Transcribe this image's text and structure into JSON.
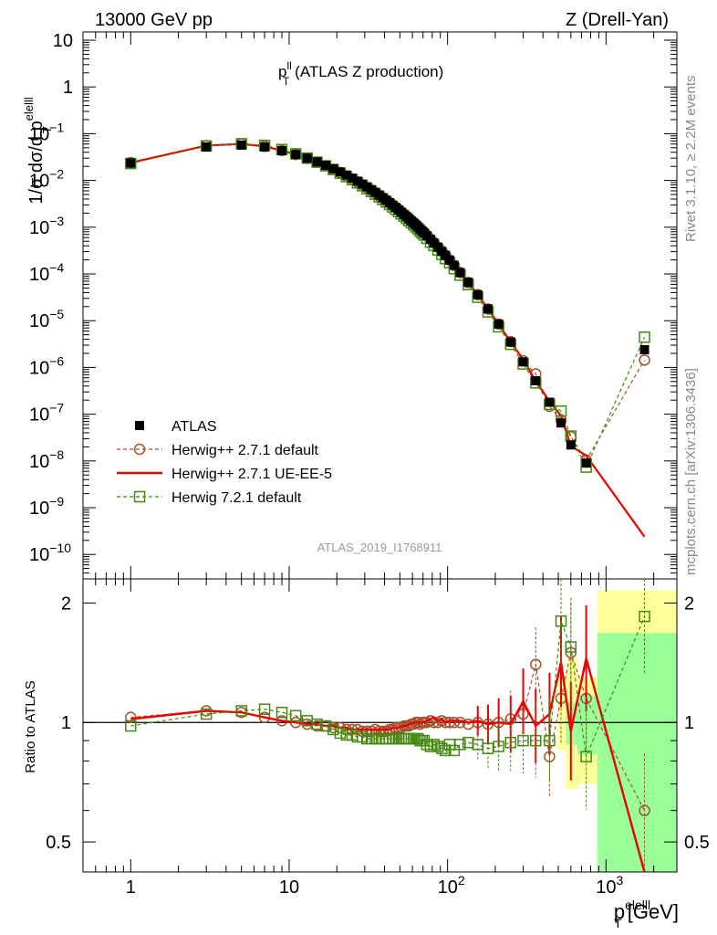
{
  "header": {
    "energy": "13000 GeV pp",
    "process": "Z (Drell-Yan)"
  },
  "side_labels": {
    "rivet": "Rivet 3.1.10, ≥ 2.2M events",
    "mcplots": "mcplots.cern.ch [arXiv:1306.3436]"
  },
  "chart_data": [
    {
      "type": "scatter",
      "panel": "main",
      "title_main": "p",
      "title_sup": "ll",
      "title_sub": "T",
      "title_rest": "(ATLAS Z production)",
      "ylabel_main": "1/σ dσ/d p",
      "ylabel_sup": "elelll",
      "ylabel_sub": "T",
      "xscale": "log",
      "yscale": "log",
      "xlim": [
        0.5,
        2800
      ],
      "ylim": [
        3e-11,
        15
      ],
      "watermark": "ATLAS_2019_I1768911",
      "legend_position": "lower-left",
      "x": [
        1,
        3,
        5,
        7,
        9,
        11,
        13,
        15,
        17,
        19,
        21,
        23,
        25,
        27,
        29,
        31,
        33,
        35,
        37,
        39,
        41,
        43,
        45,
        47,
        49,
        51,
        53,
        55,
        57,
        59,
        61,
        63,
        65,
        67,
        69,
        71,
        74,
        78,
        82,
        87,
        92,
        97,
        103,
        110,
        120,
        135,
        155,
        180,
        210,
        250,
        300,
        360,
        440,
        520,
        600,
        750,
        1750
      ],
      "series": [
        {
          "name": "ATLAS",
          "style": "black-filled-square",
          "color": "#000000",
          "values": [
            0.0235,
            0.052,
            0.057,
            0.052,
            0.0432,
            0.0358,
            0.0298,
            0.0249,
            0.021,
            0.0178,
            0.0152,
            0.013,
            0.0112,
            0.00965,
            0.00838,
            0.0073,
            0.00637,
            0.00557,
            0.00489,
            0.0043,
            0.0038,
            0.00336,
            0.00298,
            0.00265,
            0.00236,
            0.0021,
            0.00188,
            0.00169,
            0.00152,
            0.00137,
            0.00124,
            0.00112,
            0.00101,
            0.000916,
            0.000832,
            0.000757,
            0.000658,
            0.000549,
            0.000461,
            0.000373,
            0.000304,
            0.00025,
            0.000198,
            0.000153,
            0.000107,
            6.62e-05,
            3.6e-05,
            1.79e-05,
            8.5e-06,
            3.5e-06,
            1.32e-06,
            5.2e-07,
            1.8e-07,
            6.5e-08,
            2.2e-08,
            9e-09,
            2.4e-06
          ]
        },
        {
          "name": "Herwig++ 2.7.1 default",
          "style": "dashed-open-circle",
          "color": "#a0522d",
          "ratios": [
            1.03,
            1.07,
            1.06,
            1.03,
            1.01,
            1.0,
            0.99,
            0.98,
            0.98,
            0.97,
            0.97,
            0.96,
            0.96,
            0.96,
            0.95,
            0.95,
            0.95,
            0.96,
            0.95,
            0.95,
            0.95,
            0.96,
            0.96,
            0.97,
            0.97,
            0.97,
            0.98,
            0.98,
            0.98,
            0.99,
            0.99,
            1.0,
            1.0,
            0.99,
            1.0,
            1.0,
            1.0,
            1.01,
            1.0,
            1.0,
            1.01,
            1.0,
            1.0,
            1.0,
            1.0,
            0.99,
            1.0,
            0.99,
            1.0,
            1.02,
            1.05,
            1.4,
            0.82,
            1.15,
            1.5,
            1.15,
            0.6
          ]
        },
        {
          "name": "Herwig++ 2.7.1 UE-EE-5",
          "style": "solid-red-line",
          "color": "#ee0000",
          "ratios": [
            1.02,
            1.07,
            1.06,
            1.03,
            1.01,
            1.0,
            0.99,
            0.99,
            0.98,
            0.98,
            0.97,
            0.97,
            0.96,
            0.96,
            0.96,
            0.96,
            0.96,
            0.96,
            0.96,
            0.96,
            0.96,
            0.96,
            0.97,
            0.97,
            0.97,
            0.98,
            0.98,
            0.98,
            0.99,
            0.99,
            1.0,
            1.0,
            1.0,
            1.0,
            1.0,
            1.0,
            1.01,
            1.02,
            1.03,
            1.01,
            1.02,
            1.0,
            1.01,
            1.01,
            1.01,
            1.0,
            1.01,
            0.99,
            1.0,
            0.99,
            1.13,
            0.98,
            1.05,
            1.42,
            0.95,
            1.45,
            0.0001
          ]
        },
        {
          "name": "Herwig 7.2.1 default",
          "style": "dashed-open-square",
          "color": "#448811",
          "ratios": [
            0.98,
            1.05,
            1.07,
            1.08,
            1.06,
            1.04,
            1.01,
            0.99,
            0.98,
            0.96,
            0.94,
            0.93,
            0.93,
            0.92,
            0.92,
            0.91,
            0.91,
            0.91,
            0.91,
            0.91,
            0.91,
            0.91,
            0.91,
            0.91,
            0.91,
            0.91,
            0.91,
            0.91,
            0.91,
            0.91,
            0.91,
            0.91,
            0.91,
            0.9,
            0.9,
            0.9,
            0.88,
            0.87,
            0.88,
            0.87,
            0.86,
            0.85,
            0.88,
            0.85,
            0.88,
            0.89,
            0.88,
            0.86,
            0.87,
            0.89,
            0.9,
            0.9,
            0.9,
            1.8,
            1.55,
            0.82,
            1.85
          ]
        }
      ]
    },
    {
      "type": "scatter",
      "panel": "ratio",
      "ylabel": "Ratio to ATLAS",
      "xlabel_main": "p",
      "xlabel_sup": "elelll",
      "xlabel_sub": "T",
      "xlabel_rest": " [GeV]",
      "xscale": "log",
      "yscale": "log",
      "xlim": [
        0.5,
        2800
      ],
      "ylim": [
        0.42,
        2.3
      ],
      "uncertainty_bands": [
        {
          "xmin": 500,
          "xmax": 560,
          "stat_syst": [
            0.85,
            1.3
          ]
        },
        {
          "xmin": 560,
          "xmax": 660,
          "stat_syst": [
            0.68,
            1.45
          ],
          "stat": [
            0.88,
            1.12
          ]
        },
        {
          "xmin": 660,
          "xmax": 880,
          "stat_syst": [
            0.7,
            1.3
          ],
          "stat": [
            0.83,
            1.17
          ]
        },
        {
          "xmin": 880,
          "xmax": 2800,
          "stat_syst": [
            0.42,
            2.15
          ],
          "stat": [
            0.42,
            1.68
          ]
        }
      ]
    }
  ],
  "axes": {
    "main_y_ticks": [
      {
        "value": 10,
        "mantissa": "10",
        "exp": ""
      },
      {
        "value": 1,
        "mantissa": "1",
        "exp": ""
      },
      {
        "value": 0.1,
        "mantissa": "10",
        "exp": "−1"
      },
      {
        "value": 0.01,
        "mantissa": "10",
        "exp": "−2"
      },
      {
        "value": 0.001,
        "mantissa": "10",
        "exp": "−3"
      },
      {
        "value": 0.0001,
        "mantissa": "10",
        "exp": "−4"
      },
      {
        "value": 1e-05,
        "mantissa": "10",
        "exp": "−5"
      },
      {
        "value": 1e-06,
        "mantissa": "10",
        "exp": "−6"
      },
      {
        "value": 1e-07,
        "mantissa": "10",
        "exp": "−7"
      },
      {
        "value": 1e-08,
        "mantissa": "10",
        "exp": "−8"
      },
      {
        "value": 1e-09,
        "mantissa": "10",
        "exp": "−9"
      },
      {
        "value": 1e-10,
        "mantissa": "10",
        "exp": "−10"
      }
    ],
    "ratio_y_ticks": [
      {
        "value": 2,
        "label": "2"
      },
      {
        "value": 1,
        "label": "1"
      },
      {
        "value": 0.5,
        "label": "0.5"
      }
    ],
    "x_ticks": [
      {
        "value": 1,
        "mantissa": "1",
        "exp": ""
      },
      {
        "value": 10,
        "mantissa": "10",
        "exp": ""
      },
      {
        "value": 100,
        "mantissa": "10",
        "exp": "2"
      },
      {
        "value": 1000,
        "mantissa": "10",
        "exp": "3"
      }
    ]
  },
  "colors": {
    "band_yellow": "#ffff99",
    "band_green": "#99ff99"
  }
}
